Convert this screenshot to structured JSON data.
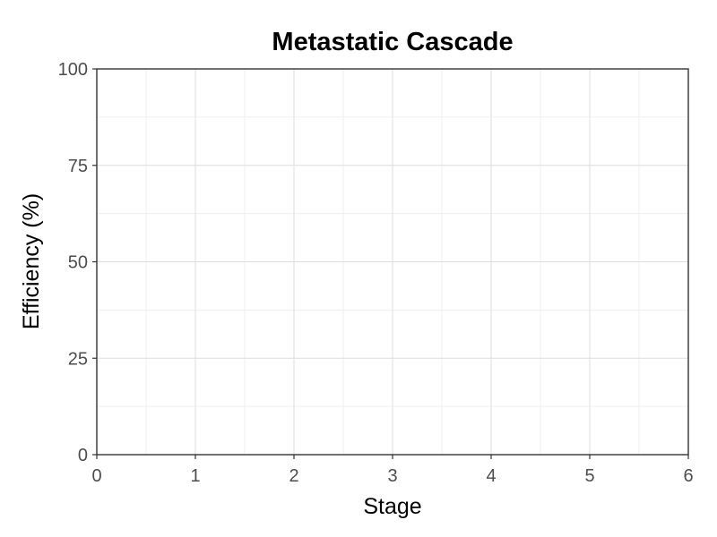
{
  "chart_data": {
    "type": "line",
    "title": "Metastatic Cascade",
    "xlabel": "Stage",
    "ylabel": "Efficiency (%)",
    "xlim": [
      0,
      6
    ],
    "ylim": [
      0,
      100
    ],
    "x_ticks": [
      0,
      1,
      2,
      3,
      4,
      5,
      6
    ],
    "y_ticks": [
      0,
      25,
      50,
      75,
      100
    ],
    "grid": true,
    "series": []
  }
}
